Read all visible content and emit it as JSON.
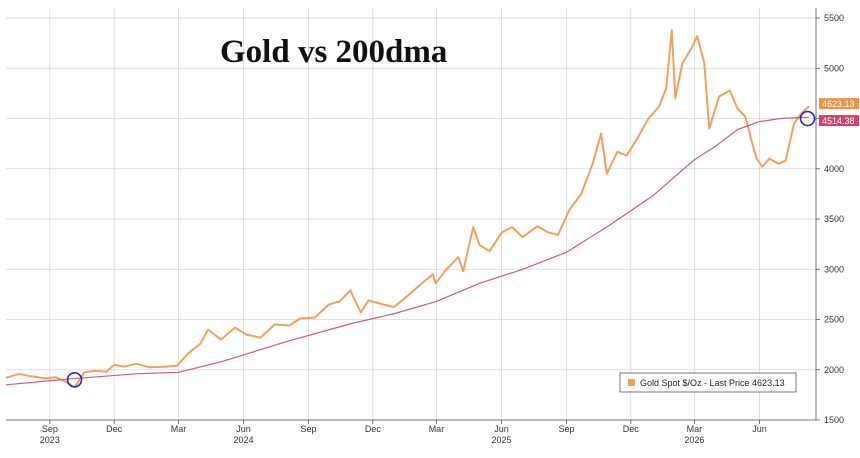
{
  "chart_data": {
    "type": "line",
    "title": "Gold vs 200dma",
    "ylim": [
      1500,
      5600
    ],
    "yticks": [
      1500,
      2000,
      2500,
      3000,
      3500,
      4000,
      4500,
      5000,
      5500
    ],
    "x_domain": [
      "2023-07-01",
      "2026-08-20"
    ],
    "month_ticks": [
      {
        "date": "2023-09-01",
        "label": "Sep"
      },
      {
        "date": "2023-12-01",
        "label": "Dec"
      },
      {
        "date": "2024-03-01",
        "label": "Mar"
      },
      {
        "date": "2024-06-01",
        "label": "Jun"
      },
      {
        "date": "2024-09-01",
        "label": "Sep"
      },
      {
        "date": "2024-12-01",
        "label": "Dec"
      },
      {
        "date": "2025-03-01",
        "label": "Mar"
      },
      {
        "date": "2025-06-01",
        "label": "Jun"
      },
      {
        "date": "2025-09-01",
        "label": "Sep"
      },
      {
        "date": "2025-12-01",
        "label": "Dec"
      },
      {
        "date": "2026-03-01",
        "label": "Mar"
      },
      {
        "date": "2026-06-01",
        "label": "Jun"
      }
    ],
    "year_labels": [
      {
        "date": "2023-09-01",
        "label": "2023"
      },
      {
        "date": "2024-06-01",
        "label": "2024"
      },
      {
        "date": "2025-06-01",
        "label": "2025"
      },
      {
        "date": "2026-03-01",
        "label": "2026"
      }
    ],
    "grid": true,
    "legend_position": "bottom-right",
    "series": [
      {
        "name": "Gold Spot $/Oz - Last Price 4623.13",
        "color": "#f0a060",
        "points": [
          [
            "2023-07-01",
            1920
          ],
          [
            "2023-07-20",
            1960
          ],
          [
            "2023-08-05",
            1935
          ],
          [
            "2023-08-25",
            1915
          ],
          [
            "2023-09-10",
            1925
          ],
          [
            "2023-09-25",
            1875
          ],
          [
            "2023-10-06",
            1825
          ],
          [
            "2023-10-20",
            1975
          ],
          [
            "2023-11-05",
            1990
          ],
          [
            "2023-11-20",
            1980
          ],
          [
            "2023-12-01",
            2050
          ],
          [
            "2023-12-15",
            2030
          ],
          [
            "2024-01-01",
            2060
          ],
          [
            "2024-01-20",
            2025
          ],
          [
            "2024-02-10",
            2030
          ],
          [
            "2024-02-28",
            2040
          ],
          [
            "2024-03-15",
            2165
          ],
          [
            "2024-04-01",
            2260
          ],
          [
            "2024-04-12",
            2400
          ],
          [
            "2024-04-30",
            2300
          ],
          [
            "2024-05-20",
            2420
          ],
          [
            "2024-06-05",
            2350
          ],
          [
            "2024-06-25",
            2320
          ],
          [
            "2024-07-15",
            2450
          ],
          [
            "2024-08-05",
            2440
          ],
          [
            "2024-08-20",
            2510
          ],
          [
            "2024-09-10",
            2520
          ],
          [
            "2024-09-30",
            2650
          ],
          [
            "2024-10-15",
            2680
          ],
          [
            "2024-10-30",
            2790
          ],
          [
            "2024-11-14",
            2570
          ],
          [
            "2024-11-25",
            2690
          ],
          [
            "2024-12-15",
            2650
          ],
          [
            "2024-12-31",
            2625
          ],
          [
            "2025-01-20",
            2740
          ],
          [
            "2025-02-10",
            2870
          ],
          [
            "2025-02-24",
            2950
          ],
          [
            "2025-02-28",
            2860
          ],
          [
            "2025-03-14",
            2990
          ],
          [
            "2025-04-01",
            3120
          ],
          [
            "2025-04-08",
            2980
          ],
          [
            "2025-04-22",
            3420
          ],
          [
            "2025-05-01",
            3240
          ],
          [
            "2025-05-15",
            3180
          ],
          [
            "2025-06-02",
            3370
          ],
          [
            "2025-06-16",
            3420
          ],
          [
            "2025-07-01",
            3320
          ],
          [
            "2025-07-22",
            3430
          ],
          [
            "2025-08-05",
            3370
          ],
          [
            "2025-08-20",
            3340
          ],
          [
            "2025-09-05",
            3590
          ],
          [
            "2025-09-22",
            3750
          ],
          [
            "2025-10-08",
            4050
          ],
          [
            "2025-10-20",
            4350
          ],
          [
            "2025-10-28",
            3950
          ],
          [
            "2025-11-12",
            4170
          ],
          [
            "2025-11-25",
            4130
          ],
          [
            "2025-12-10",
            4300
          ],
          [
            "2025-12-26",
            4500
          ],
          [
            "2026-01-10",
            4620
          ],
          [
            "2026-01-20",
            4800
          ],
          [
            "2026-01-28",
            5380
          ],
          [
            "2026-02-02",
            4700
          ],
          [
            "2026-02-12",
            5050
          ],
          [
            "2026-02-25",
            5200
          ],
          [
            "2026-03-05",
            5320
          ],
          [
            "2026-03-15",
            5050
          ],
          [
            "2026-03-22",
            4400
          ],
          [
            "2026-04-05",
            4720
          ],
          [
            "2026-04-20",
            4780
          ],
          [
            "2026-05-01",
            4600
          ],
          [
            "2026-05-12",
            4520
          ],
          [
            "2026-05-20",
            4300
          ],
          [
            "2026-05-28",
            4100
          ],
          [
            "2026-06-05",
            4020
          ],
          [
            "2026-06-15",
            4100
          ],
          [
            "2026-06-28",
            4050
          ],
          [
            "2026-07-08",
            4080
          ],
          [
            "2026-07-20",
            4450
          ],
          [
            "2026-07-30",
            4550
          ],
          [
            "2026-08-10",
            4623.13
          ]
        ]
      },
      {
        "name": "200dma",
        "color": "#d05a78",
        "points": [
          [
            "2023-07-01",
            1850
          ],
          [
            "2023-10-01",
            1910
          ],
          [
            "2024-01-01",
            1960
          ],
          [
            "2024-03-01",
            1975
          ],
          [
            "2024-05-01",
            2080
          ],
          [
            "2024-08-01",
            2280
          ],
          [
            "2024-11-01",
            2460
          ],
          [
            "2025-01-01",
            2560
          ],
          [
            "2025-03-01",
            2680
          ],
          [
            "2025-05-01",
            2860
          ],
          [
            "2025-07-01",
            3000
          ],
          [
            "2025-09-01",
            3170
          ],
          [
            "2025-11-01",
            3440
          ],
          [
            "2026-01-01",
            3730
          ],
          [
            "2026-02-01",
            3920
          ],
          [
            "2026-03-01",
            4090
          ],
          [
            "2026-04-01",
            4230
          ],
          [
            "2026-05-01",
            4390
          ],
          [
            "2026-06-01",
            4470
          ],
          [
            "2026-07-01",
            4500
          ],
          [
            "2026-08-10",
            4514.38
          ]
        ]
      }
    ],
    "last_value_tags": [
      {
        "label": "4623.13",
        "value": 4623.13,
        "color": "#e8944f"
      },
      {
        "label": "4514.38",
        "value": 4514.38,
        "color": "#d04468"
      }
    ],
    "crossover_markers": [
      {
        "date": "2023-10-06",
        "value": 1900
      },
      {
        "date": "2026-08-08",
        "value": 4500
      }
    ],
    "legend": {
      "label": "Gold Spot $/Oz - Last Price 4623.13",
      "swatch_color": "#f0a060"
    }
  }
}
